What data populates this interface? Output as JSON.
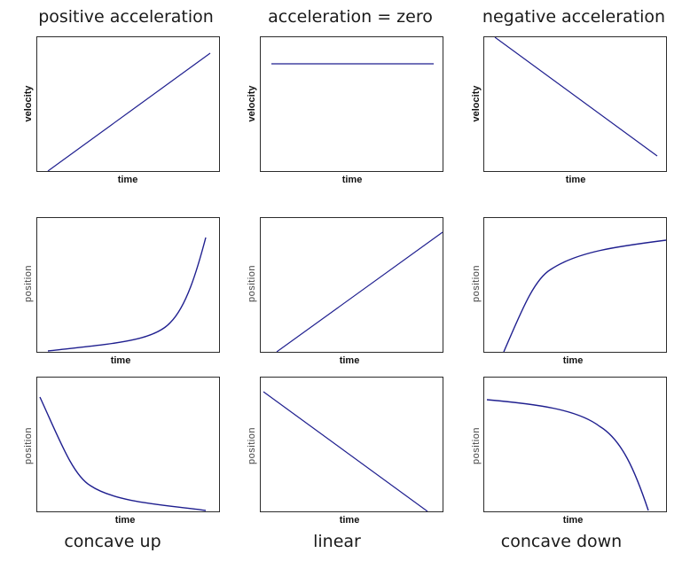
{
  "column_titles": [
    "positive acceleration",
    "acceleration = zero",
    "negative acceleration"
  ],
  "row_captions": [
    "concave up",
    "linear",
    "concave down"
  ],
  "colors": {
    "curve": "#1f1f8f",
    "frame": "#2b2b2b"
  },
  "chart_data": [
    {
      "type": "line",
      "xlabel": "time",
      "ylabel": "velocity",
      "x": [
        0,
        1
      ],
      "y": [
        0,
        1
      ],
      "shape": "increasing linear"
    },
    {
      "type": "line",
      "xlabel": "time",
      "ylabel": "velocity",
      "x": [
        0,
        1
      ],
      "y": [
        0.83,
        0.83
      ],
      "shape": "constant"
    },
    {
      "type": "line",
      "xlabel": "time",
      "ylabel": "velocity",
      "x": [
        0,
        1
      ],
      "y": [
        1,
        0.1
      ],
      "shape": "decreasing linear"
    },
    {
      "type": "line",
      "xlabel": "time",
      "ylabel": "position",
      "x": [
        0,
        0.2,
        0.4,
        0.6,
        0.7,
        0.8,
        0.9,
        1.0
      ],
      "y": [
        0.0,
        0.03,
        0.07,
        0.13,
        0.2,
        0.33,
        0.6,
        0.98
      ],
      "shape": "concave up, increasing"
    },
    {
      "type": "line",
      "xlabel": "time",
      "ylabel": "position",
      "x": [
        0,
        1
      ],
      "y": [
        0,
        1
      ],
      "shape": "linear increasing"
    },
    {
      "type": "line",
      "xlabel": "time",
      "ylabel": "position",
      "x": [
        0,
        0.1,
        0.2,
        0.3,
        0.4,
        0.6,
        0.8,
        1.0
      ],
      "y": [
        0.0,
        0.37,
        0.6,
        0.72,
        0.79,
        0.86,
        0.9,
        0.93
      ],
      "shape": "concave down, increasing"
    },
    {
      "type": "line",
      "xlabel": "time",
      "ylabel": "position",
      "x": [
        0,
        0.1,
        0.2,
        0.3,
        0.4,
        0.6,
        0.8,
        1.0
      ],
      "y": [
        0.88,
        0.5,
        0.22,
        0.12,
        0.08,
        0.05,
        0.03,
        0.0
      ],
      "shape": "concave up, decreasing"
    },
    {
      "type": "line",
      "xlabel": "time",
      "ylabel": "position",
      "x": [
        0,
        1
      ],
      "y": [
        1,
        0
      ],
      "shape": "linear decreasing"
    },
    {
      "type": "line",
      "xlabel": "time",
      "ylabel": "position",
      "x": [
        0,
        0.2,
        0.4,
        0.6,
        0.7,
        0.8,
        0.9,
        1.0
      ],
      "y": [
        0.87,
        0.85,
        0.8,
        0.73,
        0.65,
        0.55,
        0.3,
        0.0
      ],
      "shape": "concave down, decreasing"
    }
  ]
}
